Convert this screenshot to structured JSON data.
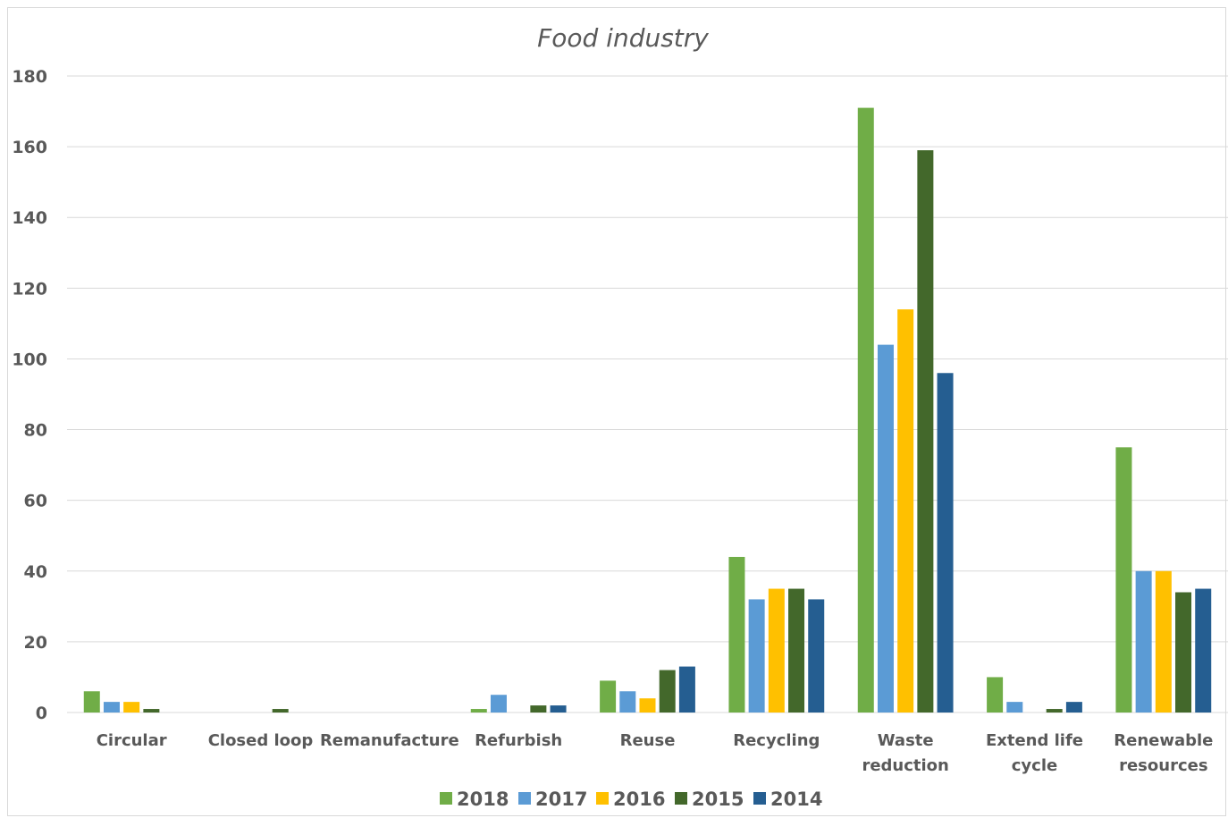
{
  "chart_data": {
    "type": "bar",
    "title": "Food industry",
    "xlabel": "",
    "ylabel": "",
    "ylim": [
      0,
      180
    ],
    "yticks": [
      0,
      20,
      40,
      60,
      80,
      100,
      120,
      140,
      160,
      180
    ],
    "grid": true,
    "legend_position": "bottom",
    "categories": [
      [
        "Circular"
      ],
      [
        "Closed loop"
      ],
      [
        "Remanufacture"
      ],
      [
        "Refurbish"
      ],
      [
        "Reuse"
      ],
      [
        "Recycling"
      ],
      [
        "Waste",
        "reduction"
      ],
      [
        "Extend life",
        "cycle"
      ],
      [
        "Renewable",
        "resources"
      ]
    ],
    "series": [
      {
        "name": "2018",
        "color": "#70ad47",
        "values": [
          6,
          0,
          0,
          1,
          9,
          44,
          171,
          10,
          75
        ]
      },
      {
        "name": "2017",
        "color": "#5b9bd5",
        "values": [
          3,
          0,
          0,
          5,
          6,
          32,
          104,
          3,
          40
        ]
      },
      {
        "name": "2016",
        "color": "#ffc000",
        "values": [
          3,
          0,
          0,
          0,
          4,
          35,
          114,
          0,
          40
        ]
      },
      {
        "name": "2015",
        "color": "#43682b",
        "values": [
          1,
          1,
          0,
          2,
          12,
          35,
          159,
          1,
          34
        ]
      },
      {
        "name": "2014",
        "color": "#255e91",
        "values": [
          0,
          0,
          0,
          2,
          13,
          32,
          96,
          3,
          35
        ]
      }
    ]
  }
}
